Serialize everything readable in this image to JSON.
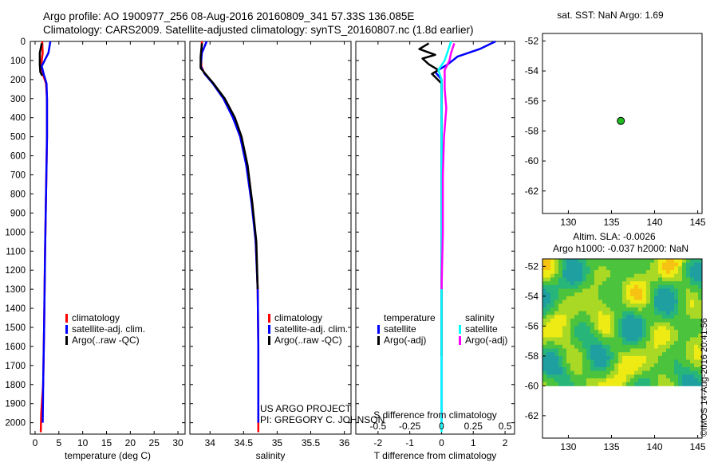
{
  "header": {
    "line1": "Argo profile: AO 1900977_256 08-Aug-2016 20160809_341 57.33S 136.085E",
    "line2": "Climatology: CARS2009. Satellite-adjusted climatology: synTS_20160807.nc (1.8d earlier)"
  },
  "credit": {
    "project": "US ARGO PROJECT",
    "pi": "PI: GREGORY C. JOHNSON",
    "stamp": "©IMOS 14-Aug-2016 20:41:56"
  },
  "colors": {
    "climatology": "#ff0000",
    "satellite": "#0000ff",
    "argo": "#000000",
    "sal_satellite": "#00ffff",
    "sal_argo": "#ff00ff",
    "marker": "#22bb22"
  },
  "chart_data": [
    {
      "id": "temperature",
      "type": "line",
      "xlabel": "temperature (deg C)",
      "ylabel": "",
      "xlim": [
        -1,
        31.5
      ],
      "ylim": [
        2060,
        0
      ],
      "xticks": [
        "0",
        "5",
        "10",
        "15",
        "20",
        "25",
        "30"
      ],
      "xtick_values": [
        0,
        5,
        10,
        15,
        20,
        25,
        30
      ],
      "yticks": [
        "0",
        "100",
        "200",
        "300",
        "400",
        "500",
        "600",
        "700",
        "800",
        "900",
        "1000",
        "1100",
        "1200",
        "1300",
        "1400",
        "1500",
        "1600",
        "1700",
        "1800",
        "1900",
        "2000"
      ],
      "ytick_values": [
        0,
        100,
        200,
        300,
        400,
        500,
        600,
        700,
        800,
        900,
        1000,
        1100,
        1200,
        1300,
        1400,
        1500,
        1600,
        1700,
        1800,
        1900,
        2000
      ],
      "legend": [
        "climatology",
        "satellite-adj. clim.",
        "Argo(..raw -QC)"
      ],
      "series": [
        {
          "name": "climatology",
          "color_key": "climatology",
          "points": [
            [
              1.5,
              0
            ],
            [
              1.6,
              60
            ],
            [
              1.3,
              120
            ],
            [
              1.6,
              170
            ],
            [
              2.3,
              220
            ],
            [
              2.5,
              300
            ],
            [
              2.5,
              500
            ],
            [
              2.3,
              800
            ],
            [
              2.1,
              1100
            ],
            [
              1.9,
              1500
            ],
            [
              1.7,
              1800
            ],
            [
              1.3,
              1950
            ],
            [
              1.2,
              2050
            ]
          ]
        },
        {
          "name": "satellite-adj. clim.",
          "color_key": "satellite",
          "points": [
            [
              3.2,
              0
            ],
            [
              2.8,
              60
            ],
            [
              1.4,
              130
            ],
            [
              1.8,
              170
            ],
            [
              2.4,
              220
            ],
            [
              2.5,
              300
            ],
            [
              2.5,
              500
            ],
            [
              2.3,
              800
            ],
            [
              2.1,
              1100
            ],
            [
              1.9,
              1500
            ],
            [
              1.7,
              1800
            ],
            [
              1.6,
              2000
            ]
          ]
        },
        {
          "name": "Argo(..raw -QC)",
          "color_key": "argo",
          "points": [
            [
              1.4,
              10
            ],
            [
              1.0,
              60
            ],
            [
              1.0,
              120
            ],
            [
              1.1,
              160
            ],
            [
              1.5,
              180
            ]
          ]
        }
      ]
    },
    {
      "id": "salinity",
      "type": "line",
      "xlabel": "salinity",
      "xlim": [
        33.7,
        36.1
      ],
      "ylim": [
        2060,
        0
      ],
      "xticks": [
        "34",
        "34.5",
        "35",
        "35.5",
        "36"
      ],
      "xtick_values": [
        34,
        34.5,
        35,
        35.5,
        36
      ],
      "legend": [
        "climatology",
        "satellite-adj. clim.",
        "Argo(..raw -QC)"
      ],
      "series": [
        {
          "name": "climatology",
          "color_key": "climatology",
          "points": [
            [
              33.88,
              0
            ],
            [
              33.87,
              80
            ],
            [
              33.87,
              130
            ],
            [
              33.92,
              170
            ],
            [
              34.05,
              220
            ],
            [
              34.2,
              300
            ],
            [
              34.35,
              400
            ],
            [
              34.45,
              500
            ],
            [
              34.55,
              650
            ],
            [
              34.63,
              850
            ],
            [
              34.68,
              1050
            ],
            [
              34.71,
              1300
            ],
            [
              34.72,
              1600
            ],
            [
              34.72,
              2050
            ]
          ]
        },
        {
          "name": "satellite-adj. clim.",
          "color_key": "satellite",
          "points": [
            [
              33.95,
              0
            ],
            [
              33.88,
              60
            ],
            [
              33.86,
              130
            ],
            [
              33.92,
              170
            ],
            [
              34.04,
              220
            ],
            [
              34.2,
              300
            ],
            [
              34.34,
              400
            ],
            [
              34.45,
              500
            ],
            [
              34.54,
              650
            ],
            [
              34.62,
              850
            ],
            [
              34.68,
              1050
            ],
            [
              34.71,
              1300
            ],
            [
              34.72,
              1600
            ],
            [
              34.72,
              2000
            ]
          ]
        },
        {
          "name": "Argo(..raw -QC)",
          "color_key": "argo",
          "points": [
            [
              33.88,
              10
            ],
            [
              33.86,
              80
            ],
            [
              33.86,
              140
            ],
            [
              33.93,
              170
            ],
            [
              34.05,
              220
            ],
            [
              34.22,
              300
            ],
            [
              34.37,
              400
            ],
            [
              34.47,
              500
            ],
            [
              34.56,
              650
            ],
            [
              34.63,
              850
            ],
            [
              34.69,
              1050
            ],
            [
              34.71,
              1300
            ]
          ]
        }
      ]
    },
    {
      "id": "difference",
      "type": "line",
      "xlabel": "T difference from climatology",
      "xlabel_top": "S difference from climatology",
      "xlim": [
        -2.7,
        2.3
      ],
      "ylim": [
        2060,
        0
      ],
      "xticks": [
        "-2",
        "-1",
        "0",
        "1",
        "2"
      ],
      "xtick_values": [
        -2,
        -1,
        0,
        1,
        2
      ],
      "sticks": [
        "-0.5",
        "-0.25",
        "0",
        "0.25",
        "0.5"
      ],
      "stick_values": [
        -2,
        -1,
        0,
        1,
        2
      ],
      "legend": {
        "temperature_header": "temperature",
        "salinity_header": "salinity",
        "satellite": "satellite",
        "argo": "Argo(-adj)"
      },
      "series": [
        {
          "name": "temperature satellite",
          "color_key": "satellite",
          "points": [
            [
              1.7,
              0
            ],
            [
              1.2,
              40
            ],
            [
              0.5,
              80
            ],
            [
              0.2,
              120
            ],
            [
              -0.2,
              160
            ],
            [
              0,
              200
            ],
            [
              0,
              250
            ],
            [
              0,
              1000
            ],
            [
              0,
              2000
            ]
          ]
        },
        {
          "name": "temperature Argo(-adj)",
          "color_key": "argo",
          "points": [
            [
              -0.4,
              10
            ],
            [
              -0.7,
              40
            ],
            [
              -0.2,
              70
            ],
            [
              -0.6,
              90
            ],
            [
              -0.4,
              120
            ],
            [
              -0.1,
              150
            ],
            [
              -0.3,
              170
            ],
            [
              0,
              220
            ],
            [
              0,
              1000
            ],
            [
              0,
              1500
            ],
            [
              0,
              1650
            ]
          ]
        },
        {
          "name": "salinity satellite",
          "color_key": "sal_satellite",
          "points": [
            [
              0.3,
              0
            ],
            [
              0.2,
              50
            ],
            [
              0.1,
              100
            ],
            [
              -0.1,
              150
            ],
            [
              0,
              200
            ],
            [
              0,
              600
            ],
            [
              0,
              1200
            ],
            [
              0,
              1800
            ],
            [
              0,
              2050
            ]
          ]
        },
        {
          "name": "salinity Argo(-adj)",
          "color_key": "sal_argo",
          "points": [
            [
              0.4,
              10
            ],
            [
              0.3,
              60
            ],
            [
              0.25,
              100
            ],
            [
              0.1,
              150
            ],
            [
              0.1,
              250
            ],
            [
              0.15,
              350
            ],
            [
              0.08,
              500
            ],
            [
              0.04,
              700
            ],
            [
              0.04,
              1000
            ],
            [
              0,
              1300
            ]
          ]
        }
      ]
    },
    {
      "id": "sst_map",
      "type": "scatter",
      "title": "sat. SST: NaN Argo: 1.69",
      "xlim": [
        127,
        145.5
      ],
      "ylim": [
        -63.5,
        -51.5
      ],
      "xticks": [
        "130",
        "135",
        "140",
        "145"
      ],
      "xtick_values": [
        130,
        135,
        140,
        145
      ],
      "yticks": [
        "-52",
        "-54",
        "-56",
        "-58",
        "-60",
        "-62"
      ],
      "ytick_values": [
        -52,
        -54,
        -56,
        -58,
        -60,
        -62
      ],
      "points": [
        [
          136.085,
          -57.33
        ]
      ]
    },
    {
      "id": "sla_map",
      "type": "heatmap",
      "title": "Altim. SLA: -0.0026",
      "subtitle": "Argo h1000: -0.037 h2000: NaN",
      "xlim": [
        127,
        145.5
      ],
      "ylim": [
        -63.5,
        -51.5
      ],
      "xticks": [
        "130",
        "135",
        "140",
        "145"
      ],
      "xtick_values": [
        130,
        135,
        140,
        145
      ],
      "yticks": [
        "-52",
        "-54",
        "-56",
        "-58",
        "-60",
        "-62"
      ],
      "ytick_values": [
        -52,
        -54,
        -56,
        -58,
        -60,
        -62
      ],
      "data_extent": {
        "lon": [
          127,
          145.5
        ],
        "lat": [
          -60,
          -51.5
        ]
      }
    }
  ]
}
